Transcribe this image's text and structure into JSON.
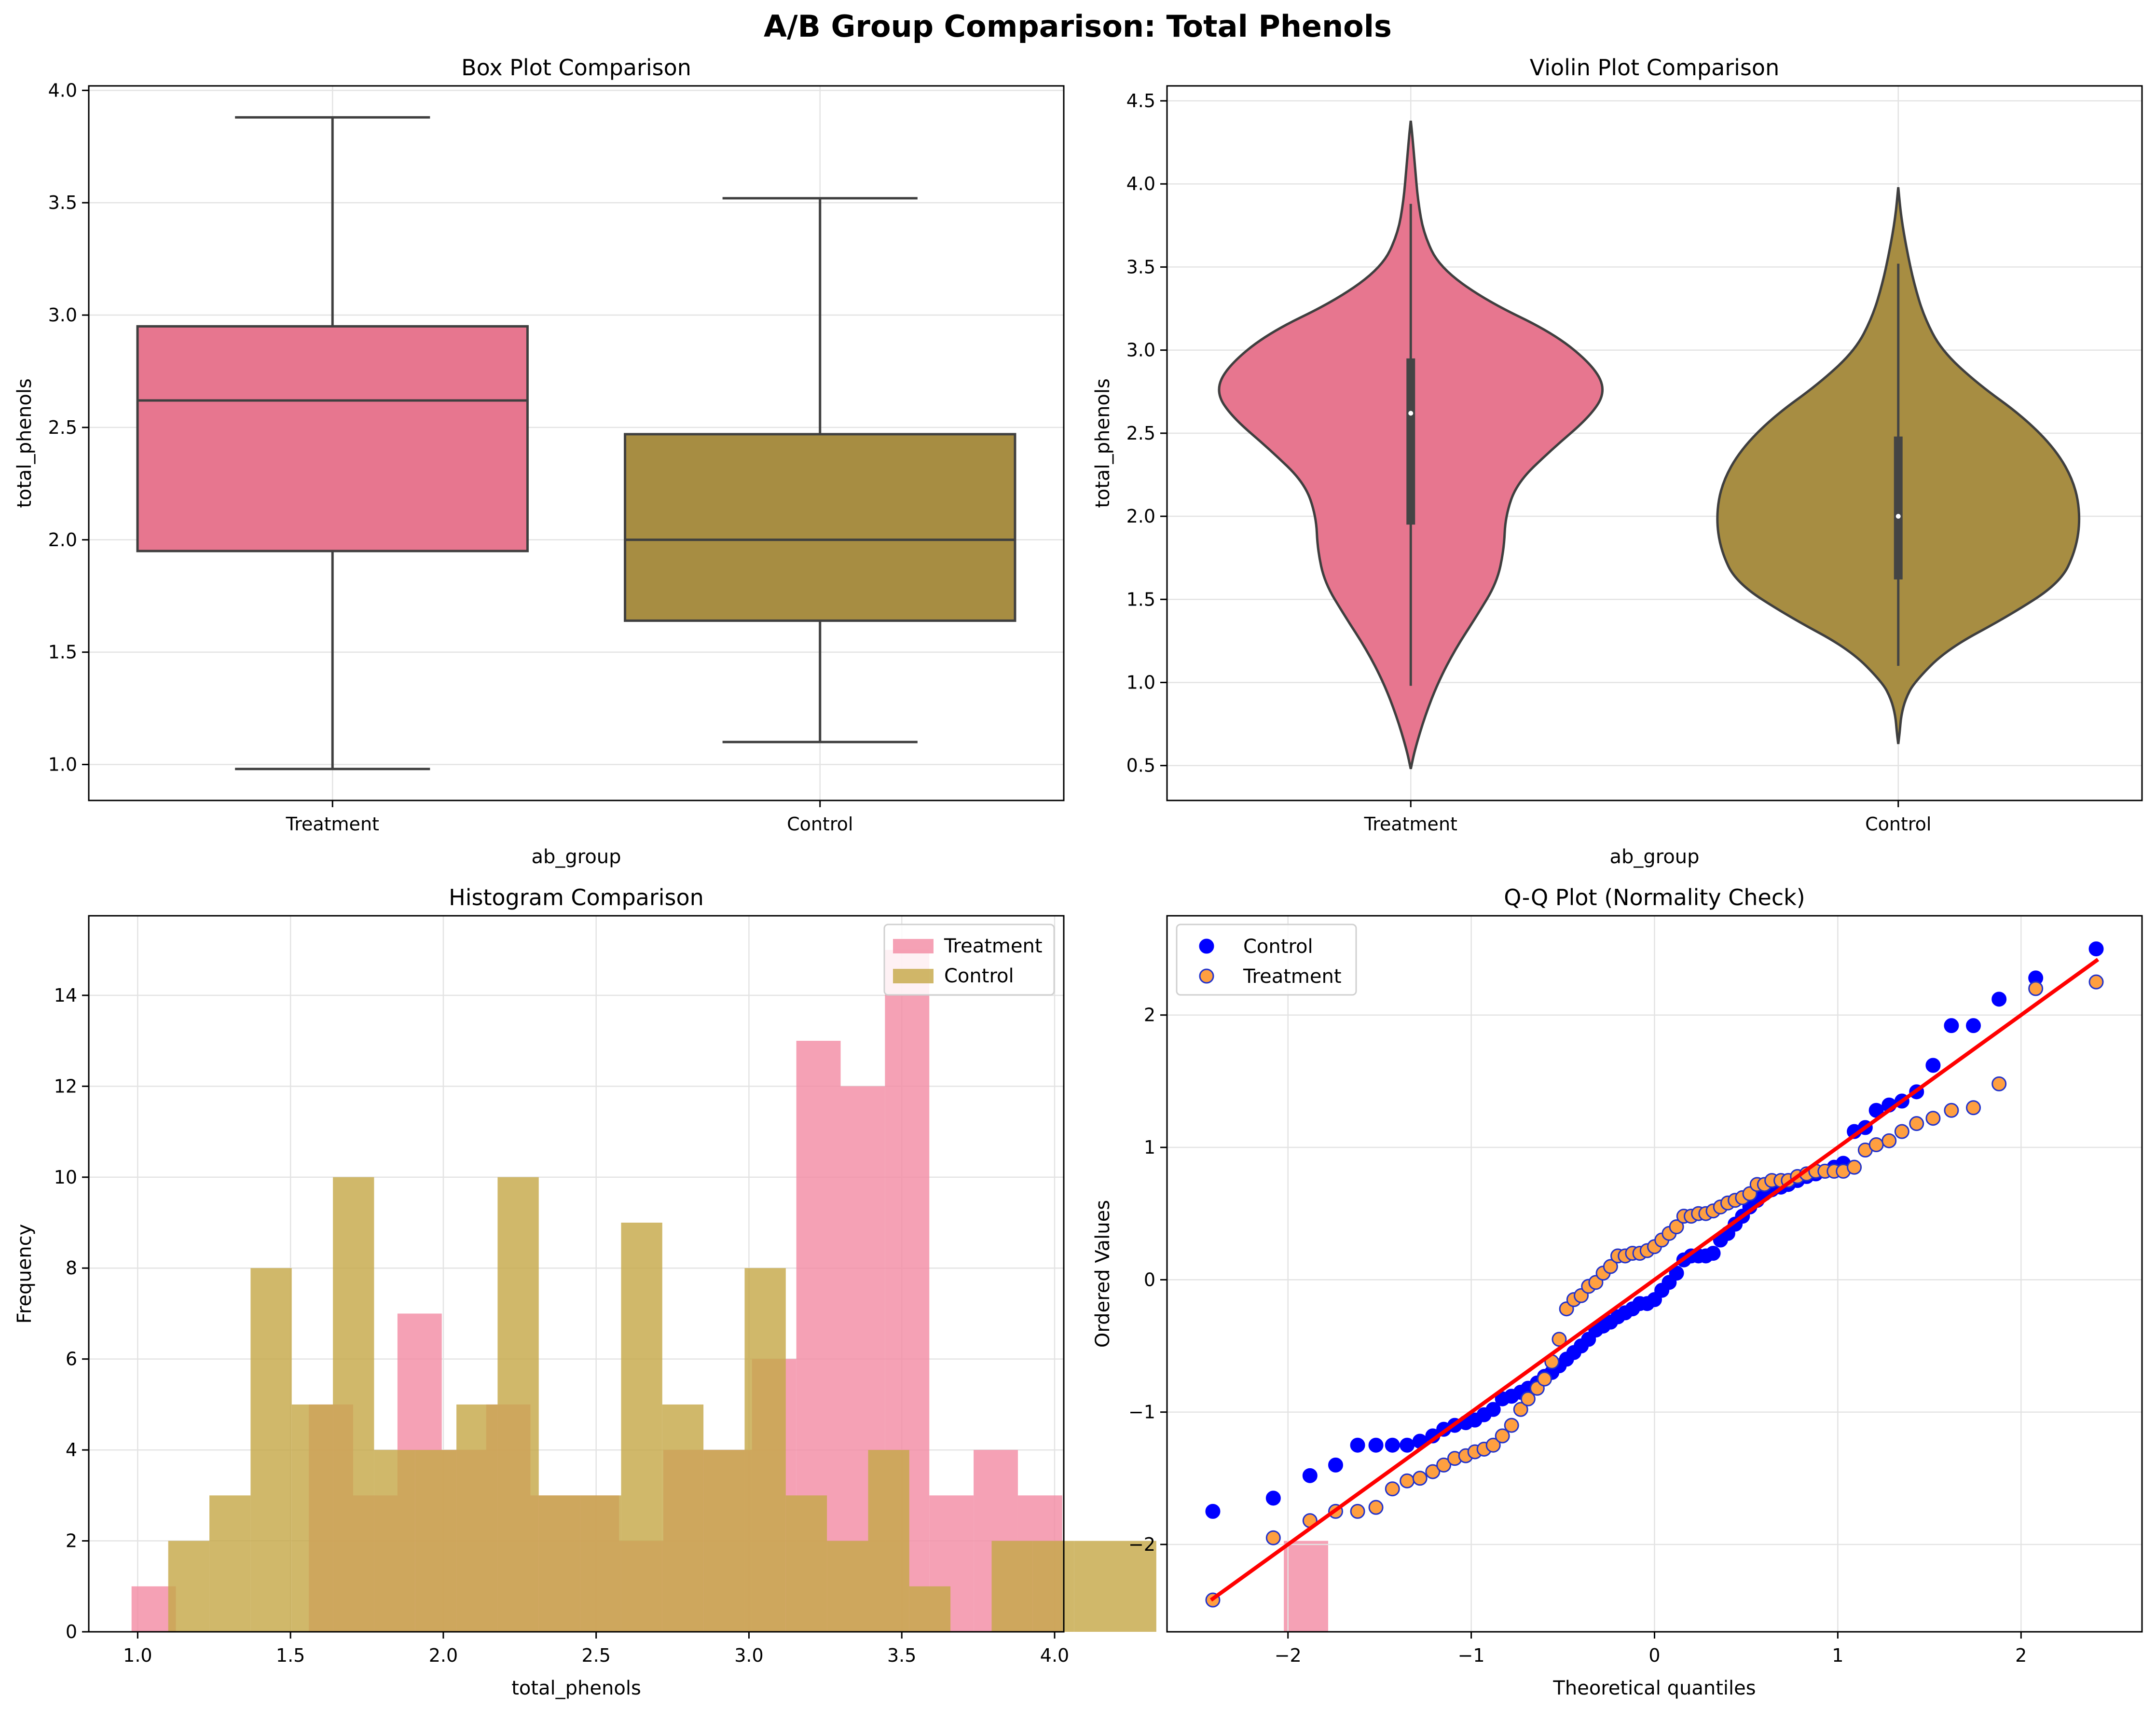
{
  "figure": {
    "title": "A/B Group Comparison: Total Phenols"
  },
  "colors": {
    "treatment": "#e7768f",
    "control": "#a78d42",
    "treatment_hist": "#f38ca5",
    "control_hist": "#c6a849",
    "box_edge": "#3f3f3f",
    "qq_control": "#0000ff",
    "qq_treatment_face": "#ff9f40",
    "qq_treatment_edge": "#2233cc",
    "qq_line": "#ff0000",
    "grid": "#e3e3e3"
  },
  "chart_data": [
    {
      "id": "box",
      "type": "box",
      "title": "Box Plot Comparison",
      "xlabel": "ab_group",
      "ylabel": "total_phenols",
      "categories": [
        "Treatment",
        "Control"
      ],
      "ylim": [
        0.84,
        4.02
      ],
      "yticks": [
        1.0,
        1.5,
        2.0,
        2.5,
        3.0,
        3.5,
        4.0
      ],
      "ytick_labels": [
        "1.0",
        "1.5",
        "2.0",
        "2.5",
        "3.0",
        "3.5",
        "4.0"
      ],
      "grid": true,
      "boxes": [
        {
          "name": "Treatment",
          "whisker_low": 0.98,
          "q1": 1.95,
          "median": 2.62,
          "q3": 2.95,
          "whisker_high": 3.88
        },
        {
          "name": "Control",
          "whisker_low": 1.1,
          "q1": 1.64,
          "median": 2.0,
          "q3": 2.47,
          "whisker_high": 3.52
        }
      ]
    },
    {
      "id": "violin",
      "type": "violin",
      "title": "Violin Plot Comparison",
      "xlabel": "ab_group",
      "ylabel": "total_phenols",
      "categories": [
        "Treatment",
        "Control"
      ],
      "ylim": [
        0.29,
        4.59
      ],
      "yticks": [
        0.5,
        1.0,
        1.5,
        2.0,
        2.5,
        3.0,
        3.5,
        4.0,
        4.5
      ],
      "ytick_labels": [
        "0.5",
        "1.0",
        "1.5",
        "2.0",
        "2.5",
        "3.0",
        "3.5",
        "4.0",
        "4.5"
      ],
      "grid": true,
      "violins": [
        {
          "name": "Treatment",
          "profile_y": [
            0.48,
            0.6,
            0.8,
            1.0,
            1.2,
            1.4,
            1.6,
            1.8,
            2.0,
            2.2,
            2.4,
            2.6,
            2.75,
            2.9,
            3.1,
            3.3,
            3.5,
            3.7,
            3.9,
            4.1,
            4.3,
            4.38
          ],
          "profile_halfwidth": [
            0.0,
            0.03,
            0.1,
            0.19,
            0.31,
            0.46,
            0.6,
            0.65,
            0.66,
            0.74,
            0.98,
            1.25,
            1.36,
            1.28,
            1.0,
            0.52,
            0.2,
            0.09,
            0.05,
            0.03,
            0.01,
            0.0
          ],
          "whisker_low": 0.98,
          "q1": 1.95,
          "median": 2.62,
          "q3": 2.95,
          "whisker_high": 3.88
        },
        {
          "name": "Control",
          "profile_y": [
            0.63,
            0.7,
            0.8,
            0.9,
            1.0,
            1.2,
            1.4,
            1.6,
            1.8,
            2.0,
            2.2,
            2.4,
            2.6,
            2.8,
            3.0,
            3.2,
            3.4,
            3.6,
            3.8,
            3.98
          ],
          "profile_halfwidth": [
            0.0,
            0.01,
            0.02,
            0.05,
            0.11,
            0.34,
            0.77,
            1.13,
            1.24,
            1.27,
            1.23,
            1.1,
            0.87,
            0.55,
            0.3,
            0.18,
            0.11,
            0.06,
            0.02,
            0.0
          ],
          "whisker_low": 1.1,
          "q1": 1.62,
          "median": 2.0,
          "q3": 2.48,
          "whisker_high": 3.52
        }
      ]
    },
    {
      "id": "hist",
      "type": "histogram",
      "title": "Histogram Comparison",
      "xlabel": "total_phenols",
      "ylabel": "Frequency",
      "xlim": [
        0.84,
        4.03
      ],
      "ylim": [
        0,
        15.75
      ],
      "xticks": [
        1.0,
        1.5,
        2.0,
        2.5,
        3.0,
        3.5,
        4.0
      ],
      "xtick_labels": [
        "1.0",
        "1.5",
        "2.0",
        "2.5",
        "3.0",
        "3.5",
        "4.0"
      ],
      "yticks": [
        0,
        2,
        4,
        6,
        8,
        10,
        12,
        14
      ],
      "ytick_labels": [
        "0",
        "2",
        "4",
        "6",
        "8",
        "10",
        "12",
        "14"
      ],
      "grid": true,
      "legend_position": "top-right",
      "series": [
        {
          "name": "Treatment",
          "bin_start": 0.98,
          "bin_width": 0.145,
          "values": [
            1,
            0,
            0,
            0,
            5,
            3,
            7,
            4,
            5,
            3,
            3,
            2,
            4,
            4,
            6,
            13,
            12,
            15,
            3,
            4,
            3,
            0,
            0,
            0,
            0,
            0,
            2
          ]
        },
        {
          "name": "Control",
          "bin_start": 1.1,
          "bin_width": 0.1347,
          "values": [
            2,
            3,
            8,
            5,
            10,
            4,
            4,
            5,
            10,
            3,
            3,
            9,
            5,
            4,
            8,
            3,
            2,
            4,
            1,
            0,
            2,
            2,
            2,
            2
          ]
        }
      ]
    },
    {
      "id": "qq",
      "type": "scatter",
      "title": "Q-Q Plot (Normality Check)",
      "xlabel": "Theoretical quantiles",
      "ylabel": "Ordered Values",
      "xlim": [
        -2.66,
        2.66
      ],
      "ylim": [
        -2.66,
        2.75
      ],
      "xticks": [
        -2,
        -1,
        0,
        1,
        2
      ],
      "xtick_labels": [
        "−2",
        "−1",
        "0",
        "1",
        "2"
      ],
      "yticks": [
        -2,
        -1,
        0,
        1,
        2
      ],
      "ytick_labels": [
        "−2",
        "−1",
        "0",
        "1",
        "2"
      ],
      "grid": true,
      "legend_position": "top-left",
      "fit_line": {
        "x": [
          -2.42,
          2.42
        ],
        "y": [
          -2.42,
          2.42
        ]
      },
      "series": [
        {
          "name": "Control",
          "points": [
            [
              -2.41,
              -1.75
            ],
            [
              -2.08,
              -1.65
            ],
            [
              -1.88,
              -1.48
            ],
            [
              -1.74,
              -1.4
            ],
            [
              -1.62,
              -1.25
            ],
            [
              -1.52,
              -1.25
            ],
            [
              -1.43,
              -1.25
            ],
            [
              -1.35,
              -1.25
            ],
            [
              -1.28,
              -1.22
            ],
            [
              -1.21,
              -1.18
            ],
            [
              -1.15,
              -1.13
            ],
            [
              -1.09,
              -1.1
            ],
            [
              -1.03,
              -1.08
            ],
            [
              -0.98,
              -1.06
            ],
            [
              -0.93,
              -1.02
            ],
            [
              -0.88,
              -0.98
            ],
            [
              -0.83,
              -0.9
            ],
            [
              -0.78,
              -0.88
            ],
            [
              -0.73,
              -0.85
            ],
            [
              -0.69,
              -0.82
            ],
            [
              -0.64,
              -0.78
            ],
            [
              -0.6,
              -0.73
            ],
            [
              -0.56,
              -0.7
            ],
            [
              -0.52,
              -0.65
            ],
            [
              -0.48,
              -0.6
            ],
            [
              -0.44,
              -0.55
            ],
            [
              -0.4,
              -0.5
            ],
            [
              -0.36,
              -0.45
            ],
            [
              -0.32,
              -0.38
            ],
            [
              -0.28,
              -0.35
            ],
            [
              -0.24,
              -0.32
            ],
            [
              -0.2,
              -0.28
            ],
            [
              -0.16,
              -0.25
            ],
            [
              -0.12,
              -0.22
            ],
            [
              -0.08,
              -0.18
            ],
            [
              -0.04,
              -0.18
            ],
            [
              0.0,
              -0.15
            ],
            [
              0.04,
              -0.08
            ],
            [
              0.08,
              -0.02
            ],
            [
              0.12,
              0.05
            ],
            [
              0.16,
              0.15
            ],
            [
              0.2,
              0.18
            ],
            [
              0.24,
              0.18
            ],
            [
              0.28,
              0.18
            ],
            [
              0.32,
              0.2
            ],
            [
              0.36,
              0.3
            ],
            [
              0.4,
              0.35
            ],
            [
              0.44,
              0.42
            ],
            [
              0.48,
              0.48
            ],
            [
              0.52,
              0.55
            ],
            [
              0.56,
              0.6
            ],
            [
              0.6,
              0.65
            ],
            [
              0.64,
              0.68
            ],
            [
              0.69,
              0.7
            ],
            [
              0.73,
              0.72
            ],
            [
              0.78,
              0.75
            ],
            [
              0.83,
              0.78
            ],
            [
              0.88,
              0.8
            ],
            [
              0.93,
              0.82
            ],
            [
              0.98,
              0.85
            ],
            [
              1.03,
              0.88
            ],
            [
              1.09,
              1.12
            ],
            [
              1.15,
              1.15
            ],
            [
              1.21,
              1.28
            ],
            [
              1.28,
              1.32
            ],
            [
              1.35,
              1.35
            ],
            [
              1.43,
              1.42
            ],
            [
              1.52,
              1.62
            ],
            [
              1.62,
              1.92
            ],
            [
              1.74,
              1.92
            ],
            [
              1.88,
              2.12
            ],
            [
              2.08,
              2.28
            ],
            [
              2.41,
              2.5
            ]
          ]
        },
        {
          "name": "Treatment",
          "points": [
            [
              -2.41,
              -2.42
            ],
            [
              -2.08,
              -1.95
            ],
            [
              -1.88,
              -1.82
            ],
            [
              -1.74,
              -1.75
            ],
            [
              -1.62,
              -1.75
            ],
            [
              -1.52,
              -1.72
            ],
            [
              -1.43,
              -1.58
            ],
            [
              -1.35,
              -1.52
            ],
            [
              -1.28,
              -1.5
            ],
            [
              -1.21,
              -1.45
            ],
            [
              -1.15,
              -1.4
            ],
            [
              -1.09,
              -1.35
            ],
            [
              -1.03,
              -1.33
            ],
            [
              -0.98,
              -1.3
            ],
            [
              -0.93,
              -1.28
            ],
            [
              -0.88,
              -1.25
            ],
            [
              -0.83,
              -1.18
            ],
            [
              -0.78,
              -1.1
            ],
            [
              -0.73,
              -0.98
            ],
            [
              -0.69,
              -0.9
            ],
            [
              -0.64,
              -0.82
            ],
            [
              -0.6,
              -0.75
            ],
            [
              -0.56,
              -0.62
            ],
            [
              -0.52,
              -0.45
            ],
            [
              -0.48,
              -0.22
            ],
            [
              -0.44,
              -0.15
            ],
            [
              -0.4,
              -0.12
            ],
            [
              -0.36,
              -0.05
            ],
            [
              -0.32,
              -0.02
            ],
            [
              -0.28,
              0.05
            ],
            [
              -0.24,
              0.1
            ],
            [
              -0.2,
              0.18
            ],
            [
              -0.16,
              0.18
            ],
            [
              -0.12,
              0.2
            ],
            [
              -0.08,
              0.2
            ],
            [
              -0.04,
              0.22
            ],
            [
              0.0,
              0.25
            ],
            [
              0.04,
              0.3
            ],
            [
              0.08,
              0.35
            ],
            [
              0.12,
              0.4
            ],
            [
              0.16,
              0.48
            ],
            [
              0.2,
              0.48
            ],
            [
              0.24,
              0.5
            ],
            [
              0.28,
              0.5
            ],
            [
              0.32,
              0.52
            ],
            [
              0.36,
              0.55
            ],
            [
              0.4,
              0.58
            ],
            [
              0.44,
              0.6
            ],
            [
              0.48,
              0.62
            ],
            [
              0.52,
              0.65
            ],
            [
              0.56,
              0.72
            ],
            [
              0.6,
              0.72
            ],
            [
              0.64,
              0.75
            ],
            [
              0.69,
              0.75
            ],
            [
              0.73,
              0.75
            ],
            [
              0.78,
              0.78
            ],
            [
              0.83,
              0.8
            ],
            [
              0.88,
              0.82
            ],
            [
              0.93,
              0.82
            ],
            [
              0.98,
              0.82
            ],
            [
              1.03,
              0.82
            ],
            [
              1.09,
              0.85
            ],
            [
              1.15,
              0.98
            ],
            [
              1.21,
              1.02
            ],
            [
              1.28,
              1.05
            ],
            [
              1.35,
              1.12
            ],
            [
              1.43,
              1.18
            ],
            [
              1.52,
              1.22
            ],
            [
              1.62,
              1.28
            ],
            [
              1.74,
              1.3
            ],
            [
              1.88,
              1.48
            ],
            [
              2.08,
              2.2
            ],
            [
              2.41,
              2.25
            ]
          ]
        }
      ]
    }
  ]
}
